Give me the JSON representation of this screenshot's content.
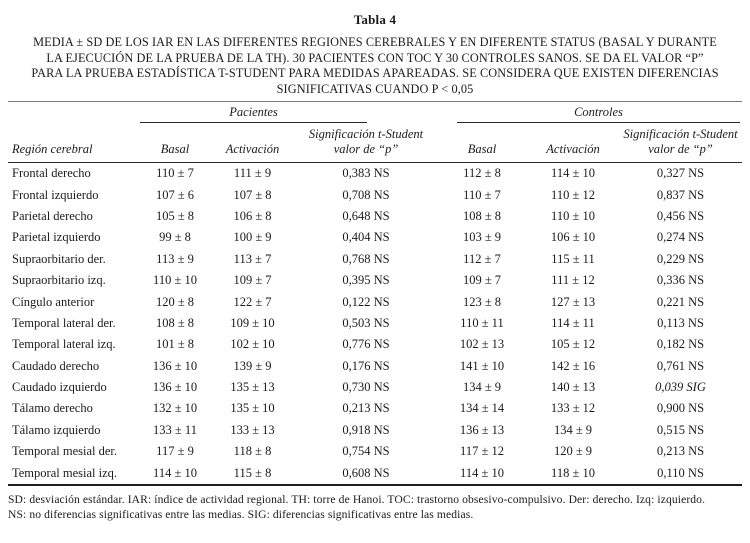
{
  "title": "Tabla 4",
  "caption_lines": [
    "MEDIA ± SD DE LOS IAR EN LAS DIFERENTES REGIONES CEREBRALES Y EN DIFERENTE STATUS (BASAL Y DURANTE",
    "LA EJECUCIÓN DE LA PRUEBA DE LA TH). 30 PACIENTES CON TOC Y 30 CONTROLES SANOS. SE DA EL VALOR “P”",
    "PARA LA PRUEBA ESTADÍSTICA T-STUDENT PARA MEDIDAS APAREADAS. SE CONSIDERA QUE EXISTEN DIFERENCIAS",
    "SIGNIFICATIVAS CUANDO P < 0,05"
  ],
  "table": {
    "group_headers": {
      "pacientes": "Pacientes",
      "controles": "Controles"
    },
    "col_headers": {
      "region": "Región cerebral",
      "basal": "Basal",
      "activacion": "Activación",
      "significacion_line1": "Significación t-Student",
      "significacion_line2": "valor de “p”"
    },
    "rows": [
      {
        "region": "Frontal derecho",
        "p_basal": "110 ± 7",
        "p_act": "111 ± 9",
        "p_sig": "0,383 NS",
        "c_basal": "112 ± 8",
        "c_act": "114 ± 10",
        "c_sig": "0,327 NS"
      },
      {
        "region": "Frontal izquierdo",
        "p_basal": "107 ± 6",
        "p_act": "107 ± 8",
        "p_sig": "0,708 NS",
        "c_basal": "110 ± 7",
        "c_act": "110 ± 12",
        "c_sig": "0,837 NS"
      },
      {
        "region": "Parietal derecho",
        "p_basal": "105 ± 8",
        "p_act": "106 ± 8",
        "p_sig": "0,648 NS",
        "c_basal": "108 ± 8",
        "c_act": "110 ± 10",
        "c_sig": "0,456 NS"
      },
      {
        "region": "Parietal izquierdo",
        "p_basal": "99 ± 8",
        "p_act": "100 ± 9",
        "p_sig": "0,404 NS",
        "c_basal": "103 ± 9",
        "c_act": "106 ± 10",
        "c_sig": "0,274 NS"
      },
      {
        "region": "Supraorbitario der.",
        "p_basal": "113 ± 9",
        "p_act": "113 ± 7",
        "p_sig": "0,768 NS",
        "c_basal": "112 ± 7",
        "c_act": "115 ± 11",
        "c_sig": "0,229 NS"
      },
      {
        "region": "Supraorbitario izq.",
        "p_basal": "110 ± 10",
        "p_act": "109 ± 7",
        "p_sig": "0,395 NS",
        "c_basal": "109 ± 7",
        "c_act": "111 ± 12",
        "c_sig": "0,336 NS"
      },
      {
        "region": "Cíngulo anterior",
        "p_basal": "120 ± 8",
        "p_act": "122 ± 7",
        "p_sig": "0,122 NS",
        "c_basal": "123 ± 8",
        "c_act": "127 ± 13",
        "c_sig": "0,221 NS"
      },
      {
        "region": "Temporal lateral der.",
        "p_basal": "108 ± 8",
        "p_act": "109 ± 10",
        "p_sig": "0,503 NS",
        "c_basal": "110 ± 11",
        "c_act": "114 ± 11",
        "c_sig": "0,113 NS"
      },
      {
        "region": "Temporal lateral izq.",
        "p_basal": "101 ± 8",
        "p_act": "102 ± 10",
        "p_sig": "0,776 NS",
        "c_basal": "102 ± 13",
        "c_act": "105 ± 12",
        "c_sig": "0,182 NS"
      },
      {
        "region": "Caudado derecho",
        "p_basal": "136 ± 10",
        "p_act": "139 ± 9",
        "p_sig": "0,176 NS",
        "c_basal": "141 ± 10",
        "c_act": "142 ± 16",
        "c_sig": "0,761 NS"
      },
      {
        "region": "Caudado izquierdo",
        "p_basal": "136 ± 10",
        "p_act": "135 ± 13",
        "p_sig": "0,730 NS",
        "c_basal": "134 ± 9",
        "c_act": "140 ± 13",
        "c_sig": "0,039 SIG"
      },
      {
        "region": "Tálamo derecho",
        "p_basal": "132 ± 10",
        "p_act": "135 ± 10",
        "p_sig": "0,213 NS",
        "c_basal": "134 ± 14",
        "c_act": "133 ± 12",
        "c_sig": "0,900 NS"
      },
      {
        "region": "Tálamo izquierdo",
        "p_basal": "133 ± 11",
        "p_act": "133 ± 13",
        "p_sig": "0,918 NS",
        "c_basal": "136 ± 13",
        "c_act": "134 ± 9",
        "c_sig": "0,515 NS"
      },
      {
        "region": "Temporal mesial der.",
        "p_basal": "117 ± 9",
        "p_act": "118 ± 8",
        "p_sig": "0,754 NS",
        "c_basal": "117 ± 12",
        "c_act": "120 ± 9",
        "c_sig": "0,213 NS"
      },
      {
        "region": "Temporal mesial izq.",
        "p_basal": "114 ± 10",
        "p_act": "115 ± 8",
        "p_sig": "0,608 NS",
        "c_basal": "114 ± 10",
        "c_act": "118 ± 10",
        "c_sig": "0,110 NS"
      }
    ]
  },
  "footnote_lines": [
    "SD: desviación estándar. IAR: índice de actividad regional. TH: torre de Hanoi. TOC: trastorno obsesivo-compulsivo. Der: derecho. Izq: izquierdo.",
    "NS: no diferencias significativas entre las medias. SIG: diferencias significativas entre las medias."
  ]
}
